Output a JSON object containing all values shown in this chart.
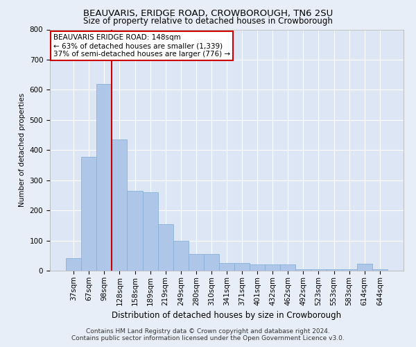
{
  "title": "BEAUVARIS, ERIDGE ROAD, CROWBOROUGH, TN6 2SU",
  "subtitle": "Size of property relative to detached houses in Crowborough",
  "xlabel": "Distribution of detached houses by size in Crowborough",
  "ylabel": "Number of detached properties",
  "categories": [
    "37sqm",
    "67sqm",
    "98sqm",
    "128sqm",
    "158sqm",
    "189sqm",
    "219sqm",
    "249sqm",
    "280sqm",
    "310sqm",
    "341sqm",
    "371sqm",
    "401sqm",
    "432sqm",
    "462sqm",
    "492sqm",
    "523sqm",
    "553sqm",
    "583sqm",
    "614sqm",
    "644sqm"
  ],
  "values": [
    42,
    378,
    620,
    435,
    265,
    260,
    155,
    98,
    55,
    55,
    25,
    25,
    20,
    20,
    20,
    5,
    5,
    5,
    5,
    22,
    5
  ],
  "bar_color": "#aec6e8",
  "bar_edge_color": "#8ab0d8",
  "background_color": "#e8eef8",
  "plot_bg_color": "#dde6f5",
  "grid_color": "#ffffff",
  "vline_color": "#cc0000",
  "vline_x": 2.5,
  "annotation_text": "BEAUVARIS ERIDGE ROAD: 148sqm\n← 63% of detached houses are smaller (1,339)\n37% of semi-detached houses are larger (776) →",
  "annotation_box_facecolor": "#ffffff",
  "annotation_box_edgecolor": "#cc0000",
  "footer_text": "Contains HM Land Registry data © Crown copyright and database right 2024.\nContains public sector information licensed under the Open Government Licence v3.0.",
  "ylim": [
    0,
    800
  ],
  "yticks": [
    0,
    100,
    200,
    300,
    400,
    500,
    600,
    700,
    800
  ],
  "title_fontsize": 9.5,
  "subtitle_fontsize": 8.5,
  "xlabel_fontsize": 8.5,
  "ylabel_fontsize": 7.5,
  "tick_fontsize": 7.5,
  "annotation_fontsize": 7.5,
  "footer_fontsize": 6.5
}
